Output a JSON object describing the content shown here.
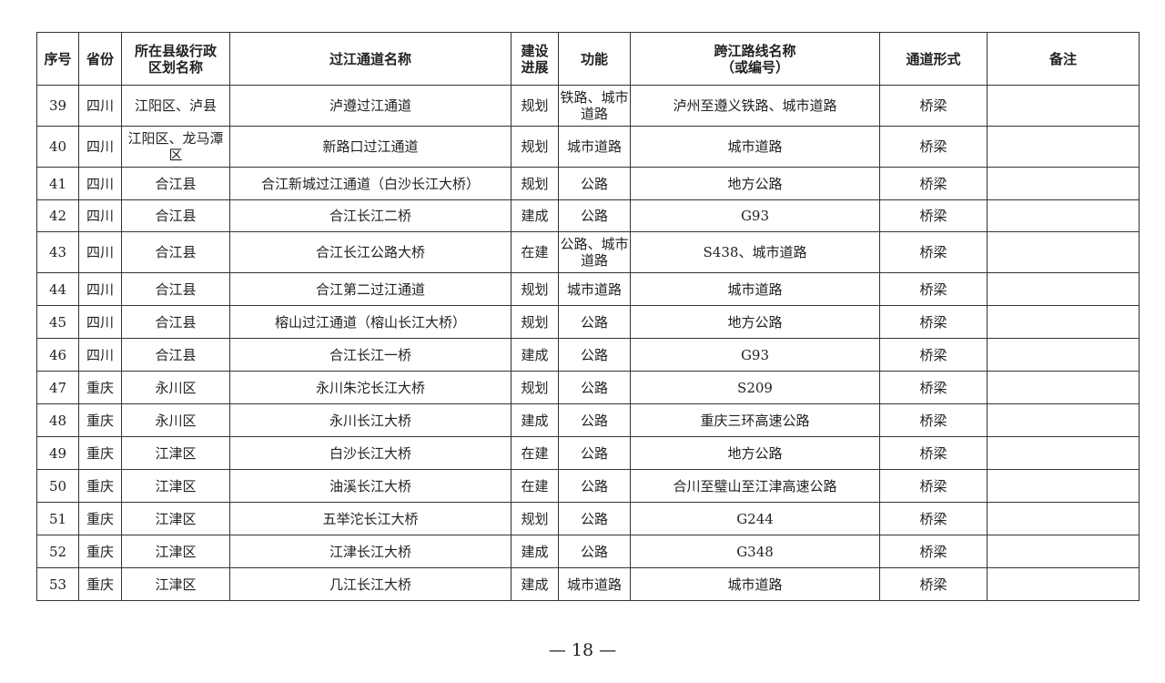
{
  "table": {
    "headers": [
      "序号",
      "省份",
      "所在县级行政区划名称",
      "过江通道名称",
      "建设进展",
      "功能",
      "跨江路线名称（或编号）",
      "通道形式",
      "备注"
    ],
    "rows": [
      [
        "39",
        "四川",
        "江阳区、泸县",
        "泸遵过江通道",
        "规划",
        "铁路、城市道路",
        "泸州至遵义铁路、城市道路",
        "桥梁",
        ""
      ],
      [
        "40",
        "四川",
        "江阳区、龙马潭区",
        "新路口过江通道",
        "规划",
        "城市道路",
        "城市道路",
        "桥梁",
        ""
      ],
      [
        "41",
        "四川",
        "合江县",
        "合江新城过江通道（白沙长江大桥）",
        "规划",
        "公路",
        "地方公路",
        "桥梁",
        ""
      ],
      [
        "42",
        "四川",
        "合江县",
        "合江长江二桥",
        "建成",
        "公路",
        "G93",
        "桥梁",
        ""
      ],
      [
        "43",
        "四川",
        "合江县",
        "合江长江公路大桥",
        "在建",
        "公路、城市道路",
        "S438、城市道路",
        "桥梁",
        ""
      ],
      [
        "44",
        "四川",
        "合江县",
        "合江第二过江通道",
        "规划",
        "城市道路",
        "城市道路",
        "桥梁",
        ""
      ],
      [
        "45",
        "四川",
        "合江县",
        "榕山过江通道（榕山长江大桥）",
        "规划",
        "公路",
        "地方公路",
        "桥梁",
        ""
      ],
      [
        "46",
        "四川",
        "合江县",
        "合江长江一桥",
        "建成",
        "公路",
        "G93",
        "桥梁",
        ""
      ],
      [
        "47",
        "重庆",
        "永川区",
        "永川朱沱长江大桥",
        "规划",
        "公路",
        "S209",
        "桥梁",
        ""
      ],
      [
        "48",
        "重庆",
        "永川区",
        "永川长江大桥",
        "建成",
        "公路",
        "重庆三环高速公路",
        "桥梁",
        ""
      ],
      [
        "49",
        "重庆",
        "江津区",
        "白沙长江大桥",
        "在建",
        "公路",
        "地方公路",
        "桥梁",
        ""
      ],
      [
        "50",
        "重庆",
        "江津区",
        "油溪长江大桥",
        "在建",
        "公路",
        "合川至璧山至江津高速公路",
        "桥梁",
        ""
      ],
      [
        "51",
        "重庆",
        "江津区",
        "五举沱长江大桥",
        "规划",
        "公路",
        "G244",
        "桥梁",
        ""
      ],
      [
        "52",
        "重庆",
        "江津区",
        "江津长江大桥",
        "建成",
        "公路",
        "G348",
        "桥梁",
        ""
      ],
      [
        "53",
        "重庆",
        "江津区",
        "几江长江大桥",
        "建成",
        "城市道路",
        "城市道路",
        "桥梁",
        ""
      ]
    ]
  },
  "footer": {
    "page": "— 18 —"
  }
}
